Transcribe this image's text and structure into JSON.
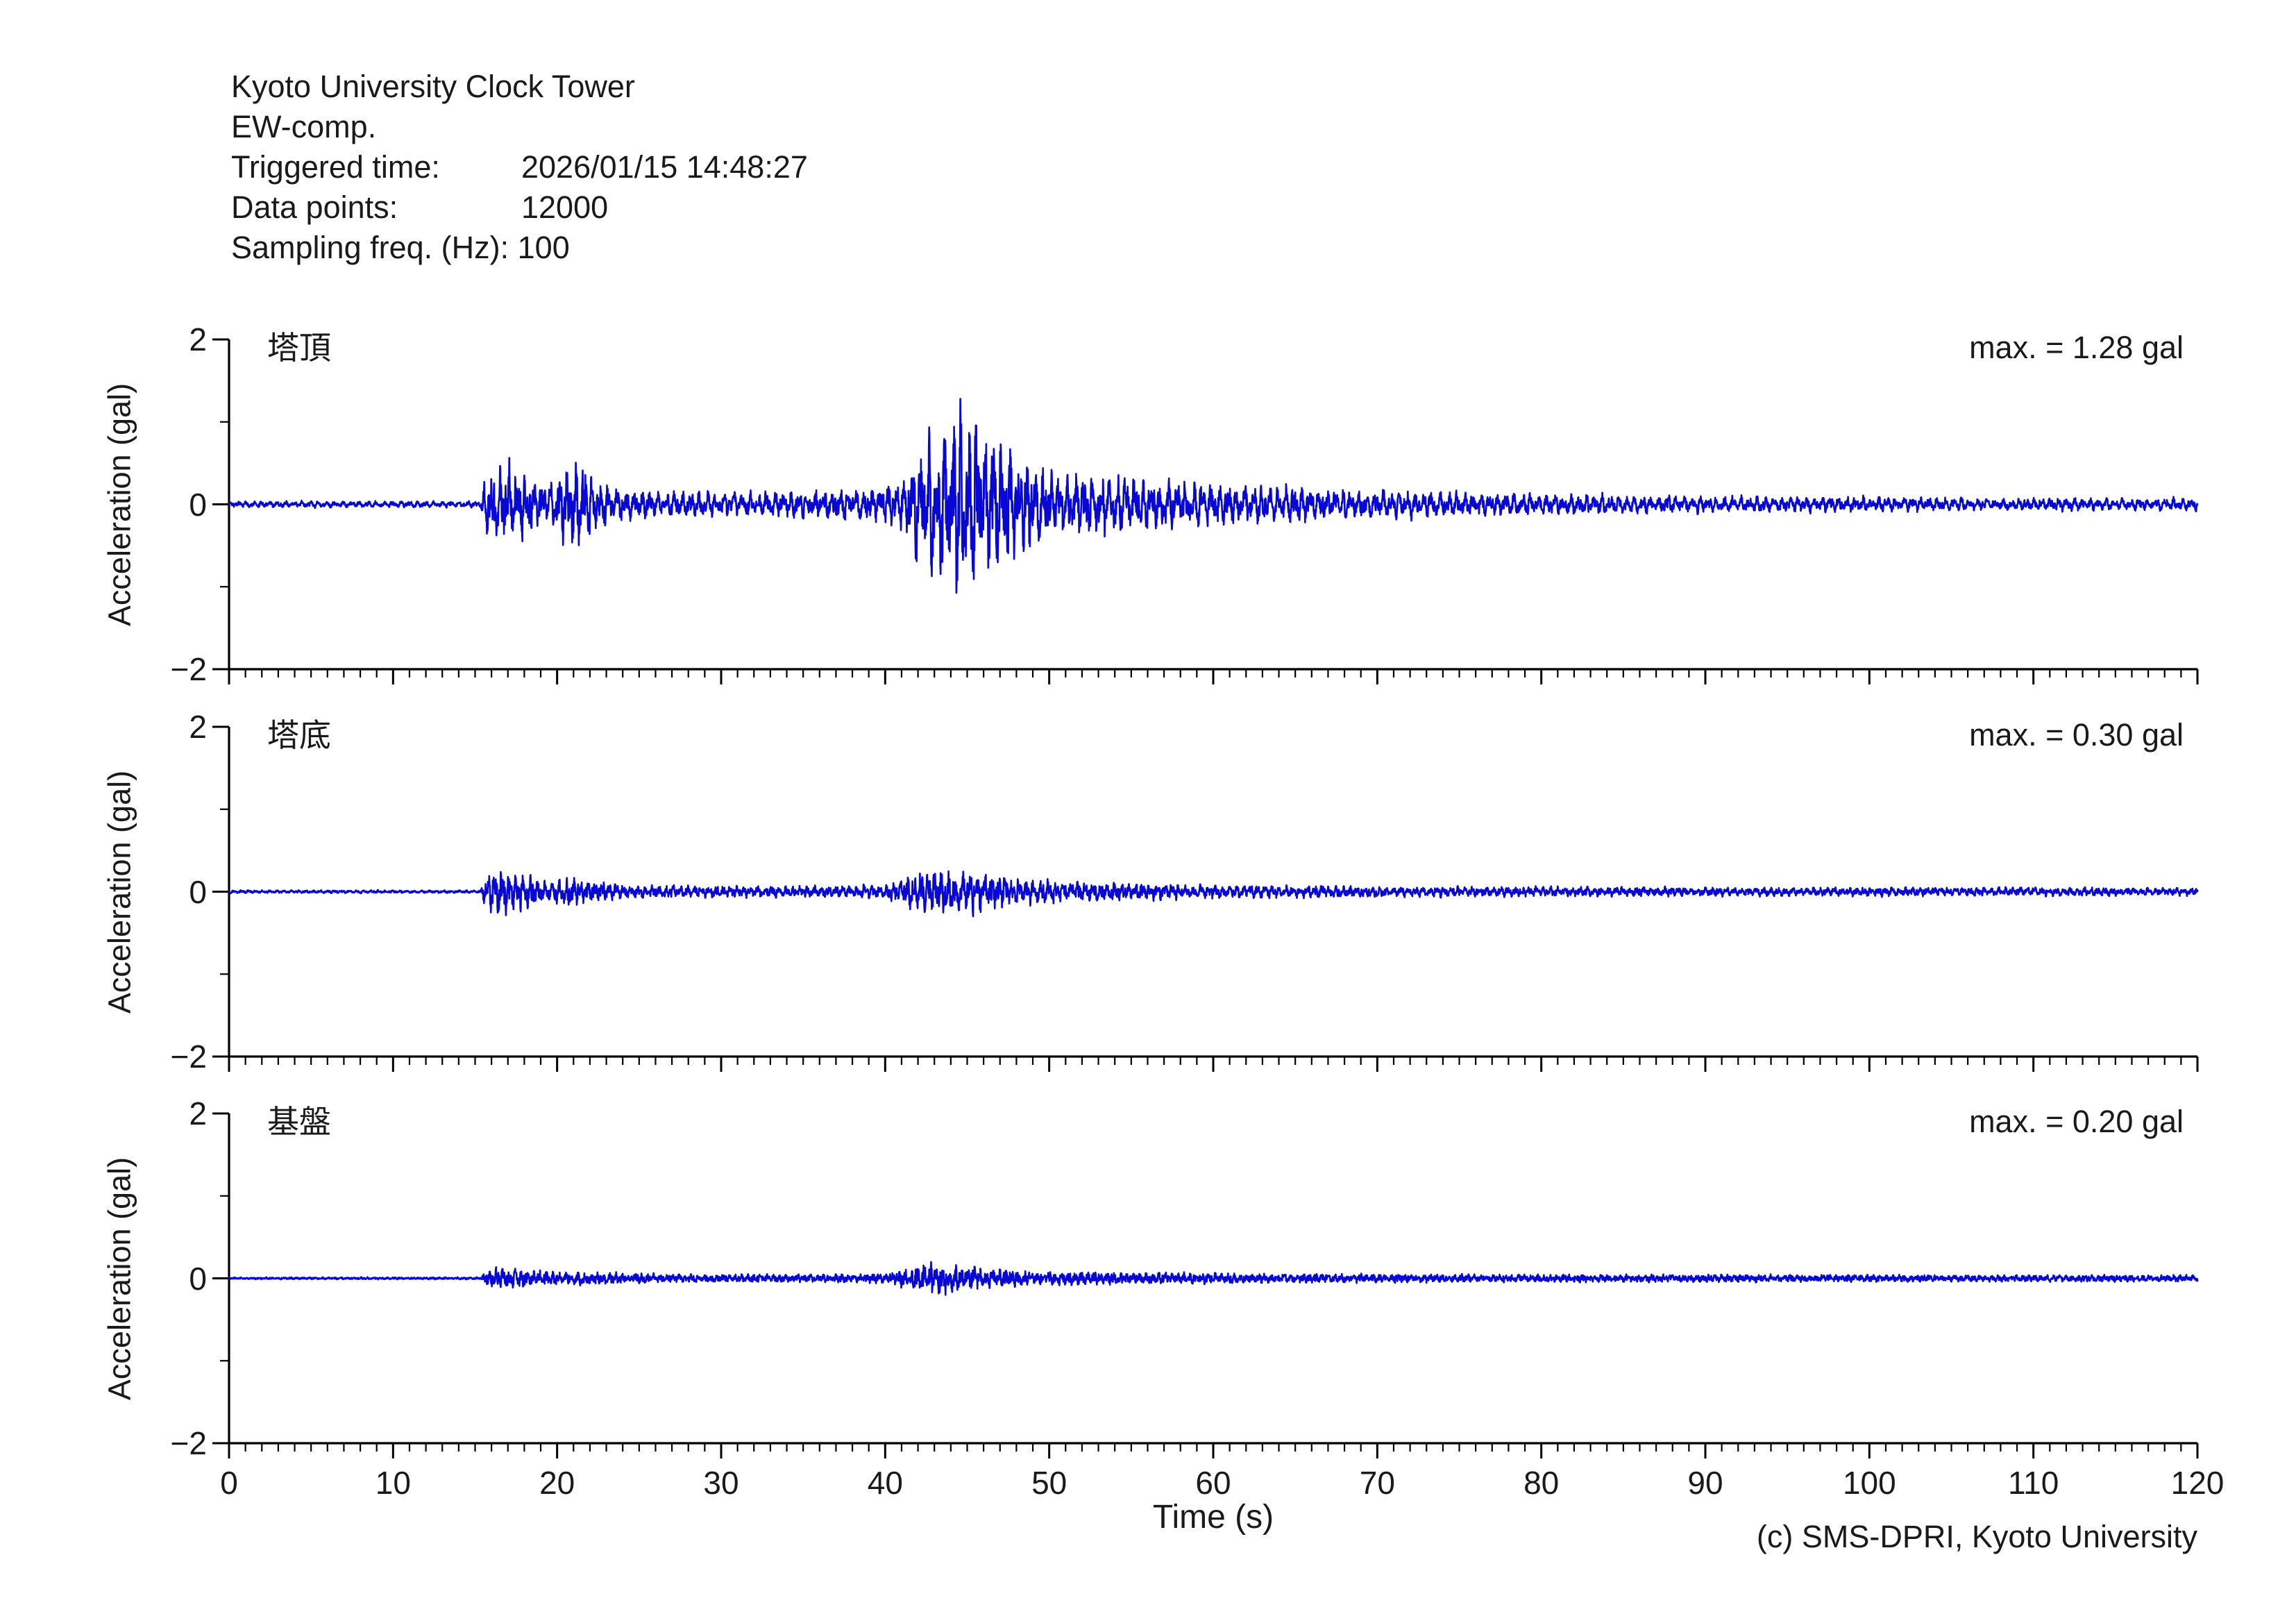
{
  "header": {
    "title": "Kyoto University Clock Tower",
    "component": "EW-comp.",
    "triggered_time_label": "Triggered time:",
    "triggered_time_value": "2026/01/15 14:48:27",
    "data_points_label": "Data points:",
    "data_points_value": "12000",
    "sampling_label": "Sampling freq. (Hz):",
    "sampling_value": "100"
  },
  "footer": {
    "credit": "(c) SMS-DPRI, Kyoto University"
  },
  "chart_data": {
    "type": "line",
    "title": "",
    "xlabel": "Time (s)",
    "ylabel": "Acceleration (gal)",
    "x_range": [
      0,
      120
    ],
    "y_range": [
      -2,
      2
    ],
    "x_tick_labels": [
      "0",
      "10",
      "20",
      "30",
      "40",
      "50",
      "60",
      "70",
      "80",
      "90",
      "100",
      "110",
      "120"
    ],
    "x_major_step": 10,
    "x_minor_step": 1,
    "y_major_ticks": [
      2,
      0,
      -2
    ],
    "y_tick_labels": [
      "2",
      "0",
      "−2"
    ],
    "y_minor_ticks": [
      1,
      -1
    ],
    "grid": false,
    "legend": "none",
    "line_color": "#0707d6",
    "axis_color": "#000000",
    "sampling_hz": 100,
    "duration_s": 120,
    "channels": [
      {
        "label": "塔頂",
        "max_label": "max. = 1.28 gal",
        "max_gal": 1.28,
        "seed": 7,
        "freqs": [
          2.0,
          3.2,
          5.4
        ],
        "mix": [
          0.75,
          0.45
        ],
        "envelope": [
          [
            0,
            0.045
          ],
          [
            15.3,
            0.045
          ],
          [
            15.8,
            0.5
          ],
          [
            17.5,
            0.55
          ],
          [
            18.6,
            0.35
          ],
          [
            19.6,
            0.3
          ],
          [
            20.6,
            0.55
          ],
          [
            21.6,
            0.6
          ],
          [
            22.6,
            0.3
          ],
          [
            24,
            0.22
          ],
          [
            27,
            0.18
          ],
          [
            31,
            0.17
          ],
          [
            35,
            0.19
          ],
          [
            38,
            0.22
          ],
          [
            40,
            0.26
          ],
          [
            41.3,
            0.4
          ],
          [
            42.3,
            0.95
          ],
          [
            43.5,
            1.15
          ],
          [
            44.6,
            1.3
          ],
          [
            45.8,
            1.2
          ],
          [
            47,
            0.95
          ],
          [
            48.2,
            0.65
          ],
          [
            50,
            0.5
          ],
          [
            53,
            0.42
          ],
          [
            57,
            0.34
          ],
          [
            62,
            0.27
          ],
          [
            68,
            0.21
          ],
          [
            75,
            0.17
          ],
          [
            85,
            0.13
          ],
          [
            95,
            0.11
          ],
          [
            105,
            0.095
          ],
          [
            120,
            0.085
          ]
        ]
      },
      {
        "label": "塔底",
        "max_label": "max. = 0.30 gal",
        "max_gal": 0.3,
        "seed": 13,
        "freqs": [
          2.3,
          4.4,
          7.2
        ],
        "mix": [
          0.7,
          0.5
        ],
        "envelope": [
          [
            0,
            0.02
          ],
          [
            15.3,
            0.02
          ],
          [
            15.8,
            0.26
          ],
          [
            16.8,
            0.3
          ],
          [
            18.2,
            0.22
          ],
          [
            19.4,
            0.13
          ],
          [
            20.6,
            0.19
          ],
          [
            22,
            0.16
          ],
          [
            23.5,
            0.1
          ],
          [
            26,
            0.085
          ],
          [
            30,
            0.075
          ],
          [
            35,
            0.075
          ],
          [
            38,
            0.085
          ],
          [
            40,
            0.1
          ],
          [
            41.4,
            0.2
          ],
          [
            42.6,
            0.3
          ],
          [
            44.5,
            0.28
          ],
          [
            46.5,
            0.24
          ],
          [
            48.5,
            0.17
          ],
          [
            51,
            0.13
          ],
          [
            55,
            0.11
          ],
          [
            60,
            0.09
          ],
          [
            67,
            0.08
          ],
          [
            75,
            0.07
          ],
          [
            85,
            0.065
          ],
          [
            100,
            0.06
          ],
          [
            120,
            0.055
          ]
        ]
      },
      {
        "label": "基盤",
        "max_label": "max. = 0.20 gal",
        "max_gal": 0.2,
        "seed": 21,
        "freqs": [
          2.6,
          5.2,
          8.4
        ],
        "mix": [
          0.6,
          0.62
        ],
        "envelope": [
          [
            0,
            0.013
          ],
          [
            15.3,
            0.013
          ],
          [
            15.8,
            0.11
          ],
          [
            16.8,
            0.13
          ],
          [
            18.2,
            0.1
          ],
          [
            20,
            0.08
          ],
          [
            22,
            0.085
          ],
          [
            24,
            0.06
          ],
          [
            28,
            0.05
          ],
          [
            33,
            0.048
          ],
          [
            38,
            0.05
          ],
          [
            40,
            0.06
          ],
          [
            41.4,
            0.12
          ],
          [
            42.8,
            0.2
          ],
          [
            44.5,
            0.16
          ],
          [
            46.5,
            0.12
          ],
          [
            48.5,
            0.09
          ],
          [
            52,
            0.075
          ],
          [
            58,
            0.065
          ],
          [
            65,
            0.055
          ],
          [
            75,
            0.05
          ],
          [
            90,
            0.045
          ],
          [
            105,
            0.042
          ],
          [
            120,
            0.04
          ]
        ]
      }
    ]
  }
}
